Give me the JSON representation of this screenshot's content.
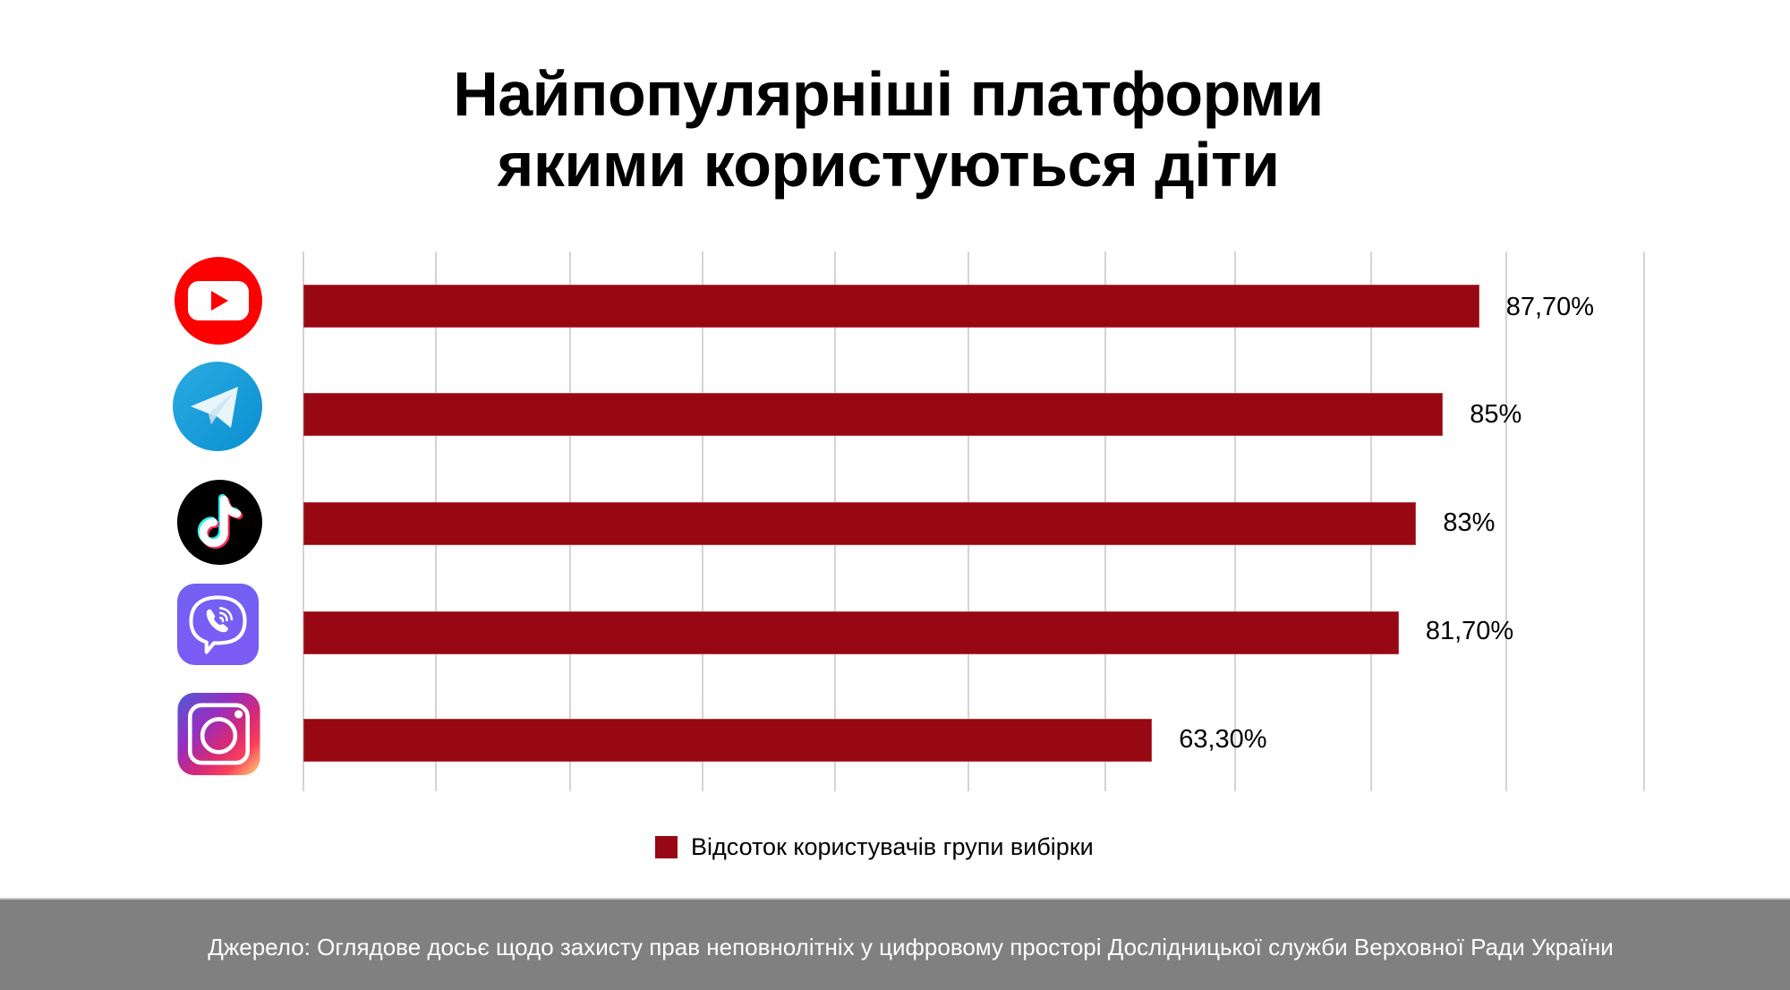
{
  "title": {
    "line1": "Найпопулярніші платформи",
    "line2": "якими користуються діти"
  },
  "chart_data": {
    "type": "bar",
    "orientation": "horizontal",
    "title": "Найпопулярніші платформи якими користуються діти",
    "categories": [
      "YouTube",
      "Telegram",
      "TikTok",
      "Viber",
      "Instagram"
    ],
    "series": [
      {
        "name": "Відсоток користувачів групи вибірки",
        "values": [
          87.7,
          85,
          83,
          81.7,
          63.3
        ],
        "labels": [
          "87,70%",
          "85%",
          "83%",
          "81,70%",
          "63,30%"
        ],
        "color": "#970812"
      }
    ],
    "xlabel": "",
    "ylabel": "",
    "xlim": [
      0,
      100
    ],
    "grid": "vertical gridlines every 10%",
    "tick_labels_visible": false,
    "category_labels": "platform logo icons",
    "legend_position": "bottom"
  },
  "bars": [
    {
      "platform": "YouTube",
      "icon": "youtube-icon",
      "value": 87.7,
      "label": "87,70%"
    },
    {
      "platform": "Telegram",
      "icon": "telegram-icon",
      "value": 85,
      "label": "85%"
    },
    {
      "platform": "TikTok",
      "icon": "tiktok-icon",
      "value": 83,
      "label": "83%"
    },
    {
      "platform": "Viber",
      "icon": "viber-icon",
      "value": 81.7,
      "label": "81,70%"
    },
    {
      "platform": "Instagram",
      "icon": "instagram-icon",
      "value": 63.3,
      "label": "63,30%"
    }
  ],
  "legend": {
    "label": "Відсоток користувачів групи вибірки",
    "color": "#970812"
  },
  "footer": {
    "source": "Джерело: Оглядове досьє щодо захисту прав неповнолітніх у цифровому просторі Дослідницької служби Верховної Ради України"
  },
  "colors": {
    "bar": "#970812",
    "gridline": "#d4d4d4",
    "footer_bg": "#808080",
    "footer_text": "#ffffff"
  }
}
